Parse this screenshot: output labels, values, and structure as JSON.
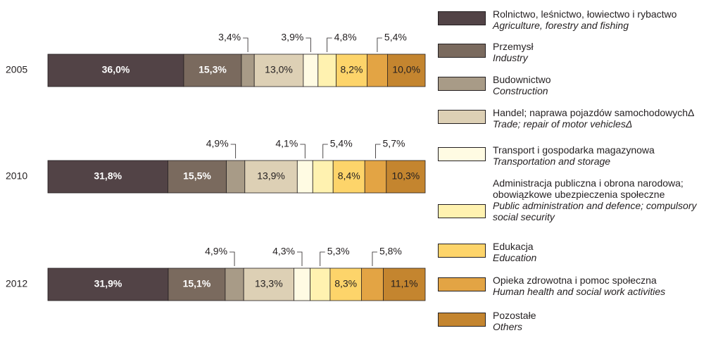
{
  "chart_data": {
    "type": "stacked-bar-horizontal",
    "categories": [
      "2005",
      "2010",
      "2012"
    ],
    "series": [
      {
        "name": "Rolnictwo, leśnictwo, łowiectwo i rybactwo",
        "name_en": "Agriculture, forestry and fishing",
        "color": "#524346",
        "values": [
          36.0,
          31.8,
          31.9
        ],
        "value_labels": [
          "36,0%",
          "31,8%",
          "31,9%"
        ]
      },
      {
        "name": "Przemysł",
        "name_en": "Industry",
        "color": "#7a6a5e",
        "values": [
          15.3,
          15.5,
          15.1
        ],
        "value_labels": [
          "15,3%",
          "15,5%",
          "15,1%"
        ]
      },
      {
        "name": "Budownictwo",
        "name_en": "Construction",
        "color": "#a89b87",
        "values": [
          3.4,
          4.9,
          4.9
        ],
        "value_labels": [
          "3,4%",
          "4,9%",
          "4,9%"
        ]
      },
      {
        "name": "Handel; naprawa pojazdów samochodowychΔ",
        "name_en": "Trade; repair of motor vehiclesΔ",
        "color": "#ddd0b5",
        "values": [
          13.0,
          13.9,
          13.3
        ],
        "value_labels": [
          "13,0%",
          "13,9%",
          "13,3%"
        ]
      },
      {
        "name": "Transport i gospodarka magazynowa",
        "name_en": "Transportation and storage",
        "color": "#fffbe3",
        "values": [
          3.9,
          4.1,
          4.3
        ],
        "value_labels": [
          "3,9%",
          "4,1%",
          "4,3%"
        ]
      },
      {
        "name": "Administracja publiczna i obrona narodowa; obowiązkowe ubezpieczenia społeczne",
        "name_en": "Public administration and defence; compulsory social security",
        "color": "#fff2b0",
        "values": [
          4.8,
          5.4,
          5.3
        ],
        "value_labels": [
          "4,8%",
          "5,4%",
          "5,3%"
        ]
      },
      {
        "name": "Edukacja",
        "name_en": "Education",
        "color": "#fdd46a",
        "values": [
          8.2,
          8.4,
          8.3
        ],
        "value_labels": [
          "8,2%",
          "8,4%",
          "8,3%"
        ]
      },
      {
        "name": "Opieka zdrowotna i pomoc społeczna",
        "name_en": "Human health and social work activities",
        "color": "#e3a444",
        "values": [
          5.4,
          5.7,
          5.8
        ],
        "value_labels": [
          "5,4%",
          "5,7%",
          "5,8%"
        ]
      },
      {
        "name": "Pozostałe",
        "name_en": "Others",
        "color": "#c4852f",
        "values": [
          10.0,
          10.3,
          11.1
        ],
        "value_labels": [
          "10,0%",
          "10,3%",
          "11,1%"
        ]
      }
    ],
    "xlim": [
      0,
      100
    ]
  }
}
